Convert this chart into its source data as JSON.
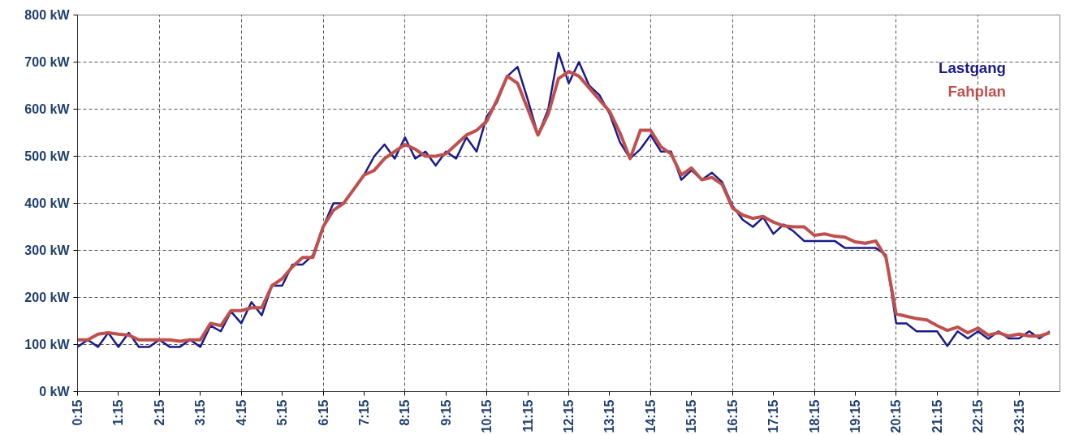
{
  "chart_data": {
    "type": "line",
    "x": [
      0.25,
      0.5,
      0.75,
      1.0,
      1.25,
      1.5,
      1.75,
      2.0,
      2.25,
      2.5,
      2.75,
      3.0,
      3.25,
      3.5,
      3.75,
      4.0,
      4.25,
      4.5,
      4.75,
      5.0,
      5.25,
      5.5,
      5.75,
      6.0,
      6.25,
      6.5,
      6.75,
      7.0,
      7.25,
      7.5,
      7.75,
      8.0,
      8.25,
      8.5,
      8.75,
      9.0,
      9.25,
      9.5,
      9.75,
      10.0,
      10.25,
      10.5,
      10.75,
      11.0,
      11.25,
      11.5,
      11.75,
      12.0,
      12.25,
      12.5,
      12.75,
      13.0,
      13.25,
      13.5,
      13.75,
      14.0,
      14.25,
      14.5,
      14.75,
      15.0,
      15.25,
      15.5,
      15.75,
      16.0,
      16.25,
      16.5,
      16.75,
      17.0,
      17.25,
      17.5,
      17.75,
      18.0,
      18.25,
      18.5,
      18.75,
      19.0,
      19.25,
      19.5,
      19.75,
      20.0,
      20.25,
      20.5,
      20.75,
      21.0,
      21.25,
      21.5,
      21.75,
      22.0,
      22.25,
      22.5,
      22.75,
      23.0,
      23.25,
      23.5,
      23.75,
      24.0
    ],
    "series": [
      {
        "name": "Lastgang",
        "color": "#1a1a8c",
        "values": [
          95,
          110,
          95,
          125,
          95,
          125,
          95,
          95,
          110,
          95,
          95,
          110,
          95,
          140,
          128,
          170,
          145,
          190,
          162,
          225,
          225,
          270,
          270,
          290,
          350,
          400,
          400,
          430,
          460,
          500,
          525,
          495,
          540,
          495,
          510,
          480,
          510,
          495,
          540,
          510,
          585,
          615,
          670,
          690,
          620,
          545,
          600,
          720,
          655,
          700,
          650,
          630,
          590,
          530,
          495,
          515,
          545,
          510,
          510,
          450,
          470,
          450,
          465,
          445,
          395,
          365,
          350,
          370,
          335,
          355,
          340,
          320,
          320,
          320,
          320,
          305,
          305,
          305,
          305,
          290,
          145,
          145,
          128,
          128,
          128,
          97,
          128,
          113,
          128,
          112,
          128,
          113,
          113,
          128,
          113,
          128
        ]
      },
      {
        "name": "Fahplan",
        "color": "#c0504d",
        "values": [
          110,
          110,
          122,
          125,
          122,
          120,
          110,
          110,
          110,
          110,
          107,
          110,
          110,
          145,
          140,
          172,
          172,
          178,
          178,
          225,
          240,
          265,
          285,
          285,
          350,
          385,
          400,
          430,
          460,
          470,
          495,
          510,
          525,
          515,
          500,
          500,
          505,
          525,
          545,
          555,
          575,
          620,
          670,
          655,
          600,
          545,
          590,
          665,
          680,
          670,
          645,
          620,
          595,
          550,
          495,
          555,
          555,
          520,
          505,
          460,
          475,
          450,
          455,
          440,
          390,
          375,
          368,
          372,
          360,
          352,
          350,
          350,
          332,
          335,
          330,
          328,
          318,
          315,
          320,
          285,
          165,
          160,
          155,
          152,
          140,
          130,
          137,
          125,
          135,
          120,
          125,
          118,
          122,
          118,
          118,
          125
        ]
      }
    ],
    "xlim": [
      0.25,
      24.25
    ],
    "xticks": [
      {
        "value": 0.25,
        "label": "0:15"
      },
      {
        "value": 1.25,
        "label": "1:15"
      },
      {
        "value": 2.25,
        "label": "2:15"
      },
      {
        "value": 3.25,
        "label": "3:15"
      },
      {
        "value": 4.25,
        "label": "4:15"
      },
      {
        "value": 5.25,
        "label": "5:15"
      },
      {
        "value": 6.25,
        "label": "6:15"
      },
      {
        "value": 7.25,
        "label": "7:15"
      },
      {
        "value": 8.25,
        "label": "8:15"
      },
      {
        "value": 9.25,
        "label": "9:15"
      },
      {
        "value": 10.25,
        "label": "10:15"
      },
      {
        "value": 11.25,
        "label": "11:15"
      },
      {
        "value": 12.25,
        "label": "12:15"
      },
      {
        "value": 13.25,
        "label": "13:15"
      },
      {
        "value": 14.25,
        "label": "14:15"
      },
      {
        "value": 15.25,
        "label": "15:15"
      },
      {
        "value": 16.25,
        "label": "16:15"
      },
      {
        "value": 17.25,
        "label": "17:15"
      },
      {
        "value": 18.25,
        "label": "18:15"
      },
      {
        "value": 19.25,
        "label": "19:15"
      },
      {
        "value": 20.25,
        "label": "20:15"
      },
      {
        "value": 21.25,
        "label": "21:15"
      },
      {
        "value": 22.25,
        "label": "22:15"
      },
      {
        "value": 23.25,
        "label": "23:15"
      }
    ],
    "ylim": [
      0,
      800
    ],
    "yticks": [
      {
        "value": 0,
        "label": "0 kW"
      },
      {
        "value": 100,
        "label": "100 kW"
      },
      {
        "value": 200,
        "label": "200 kW"
      },
      {
        "value": 300,
        "label": "300 kW"
      },
      {
        "value": 400,
        "label": "400 kW"
      },
      {
        "value": 500,
        "label": "500 kW"
      },
      {
        "value": 600,
        "label": "600 kW"
      },
      {
        "value": 700,
        "label": "700 kW"
      },
      {
        "value": 800,
        "label": "800 kW"
      }
    ],
    "grid": true,
    "legend": "top right",
    "marker": "none",
    "line_style": "solid"
  }
}
